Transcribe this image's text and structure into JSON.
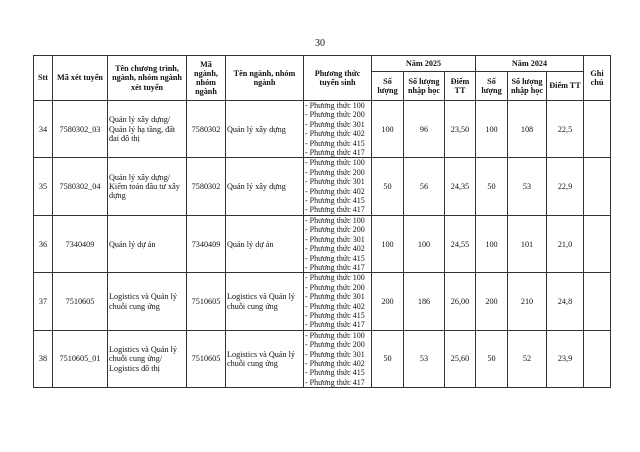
{
  "page_number": "30",
  "headers": {
    "stt": "Stt",
    "ma_xet_tuyen": "Mã xét tuyển",
    "ten_chuong_trinh": "Tên chương trình, ngành, nhóm ngành xét tuyển",
    "ma_nganh": "Mã ngành, nhóm ngành",
    "ten_nganh": "Tên ngành, nhóm ngành",
    "phuong_thuc": "Phương thức tuyển sinh",
    "nam_2025": "Năm 2025",
    "nam_2024": "Năm 2024",
    "ghi_chu": "Ghi chú",
    "so_luong": "Số lượng",
    "so_luong_2024": "Số lượng",
    "nhap_hoc": "Số lượng nhập học",
    "nhap_hoc_2024": "Số lượng nhập học",
    "diem_2025": "Điểm TT",
    "diem_2024": "Điểm TT"
  },
  "rows": [
    {
      "stt": "34",
      "ma_xet_tuyen": "7580302_03",
      "ten_chuong_trinh": "Quản lý xây dựng/ Quản lý hạ tầng, đất đai đô thị",
      "ma_nganh": "7580302",
      "ten_nganh": "Quản lý xây dựng",
      "phuong_thuc": [
        "- Phương thức 100",
        "- Phương thức 200",
        "- Phương thức 301",
        "- Phương thức 402",
        "- Phương thức 415",
        "- Phương thức 417"
      ],
      "sl_2025": "100",
      "nh_2025": "96",
      "diem_2025": "23,50",
      "sl_2024": "100",
      "nh_2024": "108",
      "diem_2024": "22,5",
      "ghi_chu": ""
    },
    {
      "stt": "35",
      "ma_xet_tuyen": "7580302_04",
      "ten_chuong_trinh": "Quản lý xây dựng/ Kiểm toán đầu tư xây dựng",
      "ma_nganh": "7580302",
      "ten_nganh": "Quản lý xây dựng",
      "phuong_thuc": [
        "- Phương thức 100",
        "- Phương thức 200",
        "- Phương thức 301",
        "- Phương thức 402",
        "- Phương thức 415",
        "- Phương thức 417"
      ],
      "sl_2025": "50",
      "nh_2025": "56",
      "diem_2025": "24,35",
      "sl_2024": "50",
      "nh_2024": "53",
      "diem_2024": "22,9",
      "ghi_chu": ""
    },
    {
      "stt": "36",
      "ma_xet_tuyen": "7340409",
      "ten_chuong_trinh": "Quản lý dự án",
      "ma_nganh": "7340409",
      "ten_nganh": "Quản lý dự án",
      "phuong_thuc": [
        "- Phương thức 100",
        "- Phương thức 200",
        "- Phương thức 301",
        "- Phương thức 402",
        "- Phương thức 415",
        "- Phương thức 417"
      ],
      "sl_2025": "100",
      "nh_2025": "100",
      "diem_2025": "24,55",
      "sl_2024": "100",
      "nh_2024": "101",
      "diem_2024": "21,0",
      "ghi_chu": ""
    },
    {
      "stt": "37",
      "ma_xet_tuyen": "7510605",
      "ten_chuong_trinh": "Logistics và Quản lý chuỗi cung ứng",
      "ma_nganh": "7510605",
      "ten_nganh": "Logistics và Quản lý chuỗi cung ứng",
      "phuong_thuc": [
        "- Phương thức 100",
        "- Phương thức 200",
        "- Phương thức 301",
        "- Phương thức 402",
        "- Phương thức 415",
        "- Phương thức 417"
      ],
      "sl_2025": "200",
      "nh_2025": "186",
      "diem_2025": "26,00",
      "sl_2024": "200",
      "nh_2024": "210",
      "diem_2024": "24,8",
      "ghi_chu": ""
    },
    {
      "stt": "38",
      "ma_xet_tuyen": "7510605_01",
      "ten_chuong_trinh": "Logistics và Quản lý chuỗi cung ứng/ Logistics đô thị",
      "ma_nganh": "7510605",
      "ten_nganh": "Logistics và Quản lý chuỗi cung ứng",
      "phuong_thuc": [
        "- Phương thức 100",
        "- Phương thức 200",
        "- Phương thức 301",
        "- Phương thức 402",
        "- Phương thức 415",
        "- Phương thức 417"
      ],
      "sl_2025": "50",
      "nh_2025": "53",
      "diem_2025": "25,60",
      "sl_2024": "50",
      "nh_2024": "52",
      "diem_2024": "23,9",
      "ghi_chu": ""
    }
  ]
}
